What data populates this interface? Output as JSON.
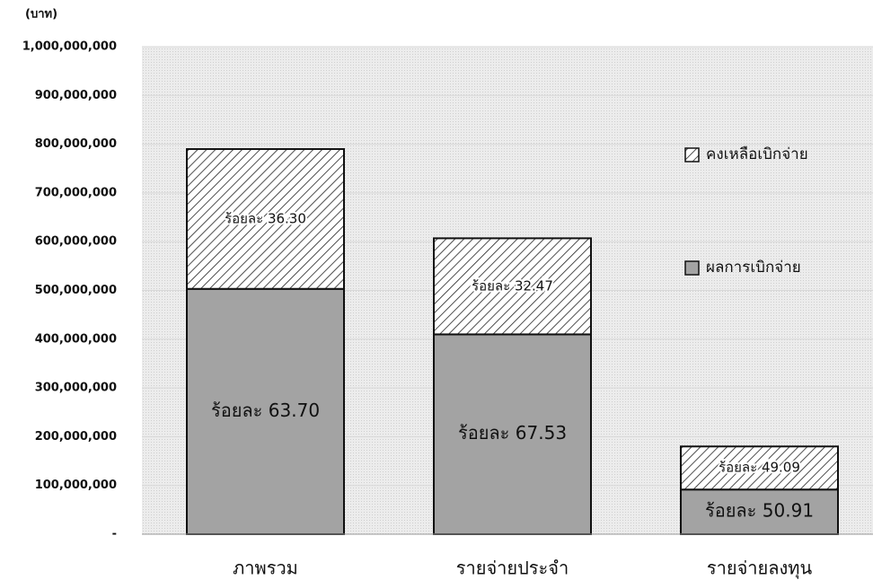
{
  "chart_data": {
    "type": "stacked_bar",
    "y_label": "(บาท)",
    "categories": [
      "ภาพรวม",
      "รายจ่ายประจำ",
      "รายจ่ายลงทุน"
    ],
    "series": [
      {
        "name": "ผลการเบิกจ่าย",
        "color": "#a3a3a3",
        "pattern": "solid",
        "values": [
          503230000,
          409910000,
          91640000
        ],
        "value_labels": [
          "ร้อยละ 63.70",
          "ร้อยละ 67.53",
          "ร้อยละ 50.91"
        ]
      },
      {
        "name": "คงเหลือเบิกจ่าย",
        "color": "#ffffff",
        "pattern": "hatch",
        "values": [
          286770000,
          197090000,
          88360000
        ],
        "value_labels": [
          "ร้อยละ 36.30",
          "ร้อยละ 32.47",
          "ร้อยละ 49.09"
        ]
      }
    ],
    "ylim": [
      0,
      1000000000
    ],
    "yticks": [
      {
        "value": 0,
        "label": "-"
      },
      {
        "value": 100000000,
        "label": "100,000,000"
      },
      {
        "value": 200000000,
        "label": "200,000,000"
      },
      {
        "value": 300000000,
        "label": "300,000,000"
      },
      {
        "value": 400000000,
        "label": "400,000,000"
      },
      {
        "value": 500000000,
        "label": "500,000,000"
      },
      {
        "value": 600000000,
        "label": "600,000,000"
      },
      {
        "value": 700000000,
        "label": "700,000,000"
      },
      {
        "value": 800000000,
        "label": "800,000,000"
      },
      {
        "value": 900000000,
        "label": "900,000,000"
      },
      {
        "value": 1000000000,
        "label": "1,000,000,000"
      }
    ],
    "grid": true,
    "legend": "right"
  }
}
